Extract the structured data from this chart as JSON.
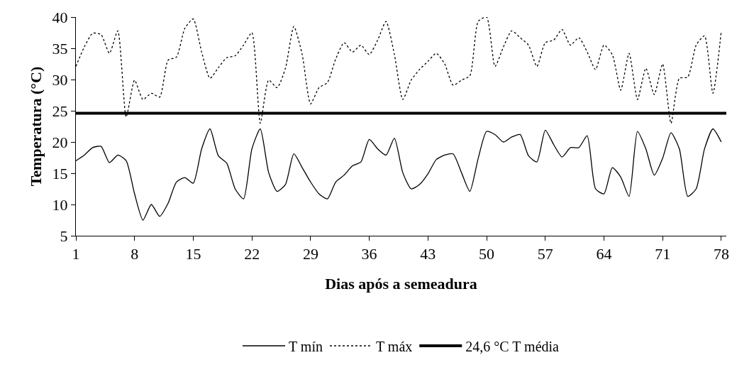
{
  "chart_data": {
    "type": "line",
    "xlabel": "Dias após a semeadura",
    "ylabel": "Temperatura (°C)",
    "x": [
      1,
      2,
      3,
      4,
      5,
      6,
      7,
      8,
      9,
      10,
      11,
      12,
      13,
      14,
      15,
      16,
      17,
      18,
      19,
      20,
      21,
      22,
      23,
      24,
      25,
      26,
      27,
      28,
      29,
      30,
      31,
      32,
      33,
      34,
      35,
      36,
      37,
      38,
      39,
      40,
      41,
      42,
      43,
      44,
      45,
      46,
      47,
      48,
      49,
      50,
      51,
      52,
      53,
      54,
      55,
      56,
      57,
      58,
      59,
      60,
      61,
      62,
      63,
      64,
      65,
      66,
      67,
      68,
      69,
      70,
      71,
      72,
      73,
      74,
      75,
      76,
      77,
      78
    ],
    "series": [
      {
        "name": "T mín",
        "color": "#000000",
        "line_style": "solid",
        "values": [
          17.0,
          17.9,
          19.1,
          19.3,
          16.7,
          17.9,
          17.0,
          11.7,
          7.5,
          10.0,
          8.1,
          10.2,
          13.6,
          14.3,
          13.4,
          18.9,
          22.1,
          17.8,
          16.6,
          12.5,
          10.9,
          18.9,
          22.1,
          15.1,
          12.1,
          13.2,
          18.1,
          15.9,
          13.6,
          11.7,
          10.9,
          13.6,
          14.7,
          16.2,
          16.8,
          20.4,
          18.9,
          17.9,
          20.6,
          15.1,
          12.5,
          13.2,
          14.9,
          17.2,
          17.9,
          18.1,
          15.1,
          12.1,
          17.4,
          21.7,
          21.2,
          20.0,
          20.8,
          21.2,
          17.8,
          16.8,
          21.9,
          19.6,
          17.6,
          19.1,
          19.1,
          21.0,
          12.5,
          11.7,
          15.9,
          14.4,
          11.3,
          21.7,
          18.9,
          14.7,
          17.4,
          21.5,
          18.9,
          11.3,
          12.5,
          18.9,
          22.1,
          20.0
        ]
      },
      {
        "name": "T máx",
        "color": "#000000",
        "line_style": "dotted",
        "values": [
          32.1,
          35.2,
          37.4,
          37.2,
          34.2,
          37.8,
          24.0,
          29.9,
          26.8,
          27.8,
          27.2,
          33.1,
          33.6,
          38.2,
          39.7,
          34.4,
          30.2,
          31.9,
          33.5,
          33.8,
          35.5,
          37.5,
          23.0,
          29.9,
          28.7,
          31.8,
          38.5,
          34.0,
          26.1,
          28.7,
          29.5,
          33.3,
          35.9,
          34.4,
          35.5,
          34.0,
          36.3,
          39.3,
          34.0,
          26.8,
          29.9,
          31.6,
          32.9,
          34.2,
          32.5,
          29.1,
          29.9,
          30.6,
          39.3,
          40.0,
          32.1,
          35.2,
          37.8,
          36.7,
          35.5,
          32.1,
          35.9,
          36.3,
          38.0,
          35.5,
          36.7,
          34.4,
          31.6,
          35.5,
          34.0,
          28.3,
          34.2,
          26.8,
          31.8,
          27.6,
          32.5,
          23.0,
          30.2,
          30.4,
          35.5,
          37.0,
          27.8,
          37.8
        ]
      }
    ],
    "ref_lines": [
      {
        "axis": "y",
        "value": 24.6,
        "label": "24,6 °C T média",
        "color": "#000000",
        "line_style": "solid"
      }
    ],
    "xlim": [
      1,
      78.6
    ],
    "xticks": [
      1,
      8,
      15,
      22,
      29,
      36,
      43,
      50,
      57,
      64,
      71,
      78
    ],
    "ylim": [
      5,
      40
    ],
    "yticks": [
      5,
      10,
      15,
      20,
      25,
      30,
      35,
      40
    ],
    "grid": false,
    "legend": "bottom",
    "marker": "none"
  }
}
